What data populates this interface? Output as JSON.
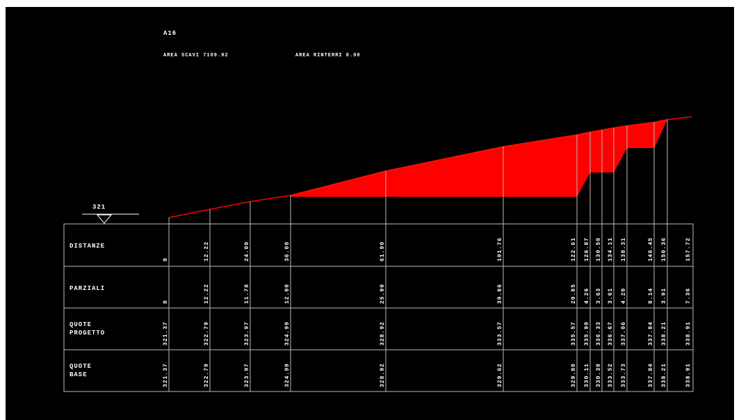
{
  "header": {
    "title": "A16",
    "area_scavi": "AREA SCAVI 7109.92",
    "area_rinterri": "AREA RINTERRI 0.00"
  },
  "datum": "321",
  "table": {
    "row_labels": [
      [
        "DISTANZE"
      ],
      [
        "PARZIALI"
      ],
      [
        "QUOTE",
        "PROGETTO"
      ],
      [
        "QUOTE",
        "BASE"
      ]
    ],
    "rows": [
      [
        "0",
        "12.22",
        "24.00",
        "36.00",
        "61.90",
        "101.76",
        "122.61",
        "126.87",
        "130.50",
        "134.11",
        "138.31",
        "146.45",
        "150.36",
        "157.72"
      ],
      [
        "0",
        "12.22",
        "11.78",
        "12.00",
        "25.90",
        "39.86",
        "20.85",
        "4.26",
        "3.63",
        "3.61",
        "4.20",
        "8.14",
        "3.91",
        "7.36"
      ],
      [
        "321.37",
        "322.79",
        "323.97",
        "324.99",
        "328.92",
        "333.57",
        "335.57",
        "335.99",
        "336.33",
        "336.67",
        "337.06",
        "337.84",
        "338.21",
        "338.91"
      ],
      [
        "321.37",
        "322.79",
        "323.97",
        "324.99",
        "328.92",
        "329.62",
        "329.80",
        "330.11",
        "330.30",
        "333.52",
        "333.73",
        "337.84",
        "338.21",
        "338.91"
      ]
    ]
  }
}
